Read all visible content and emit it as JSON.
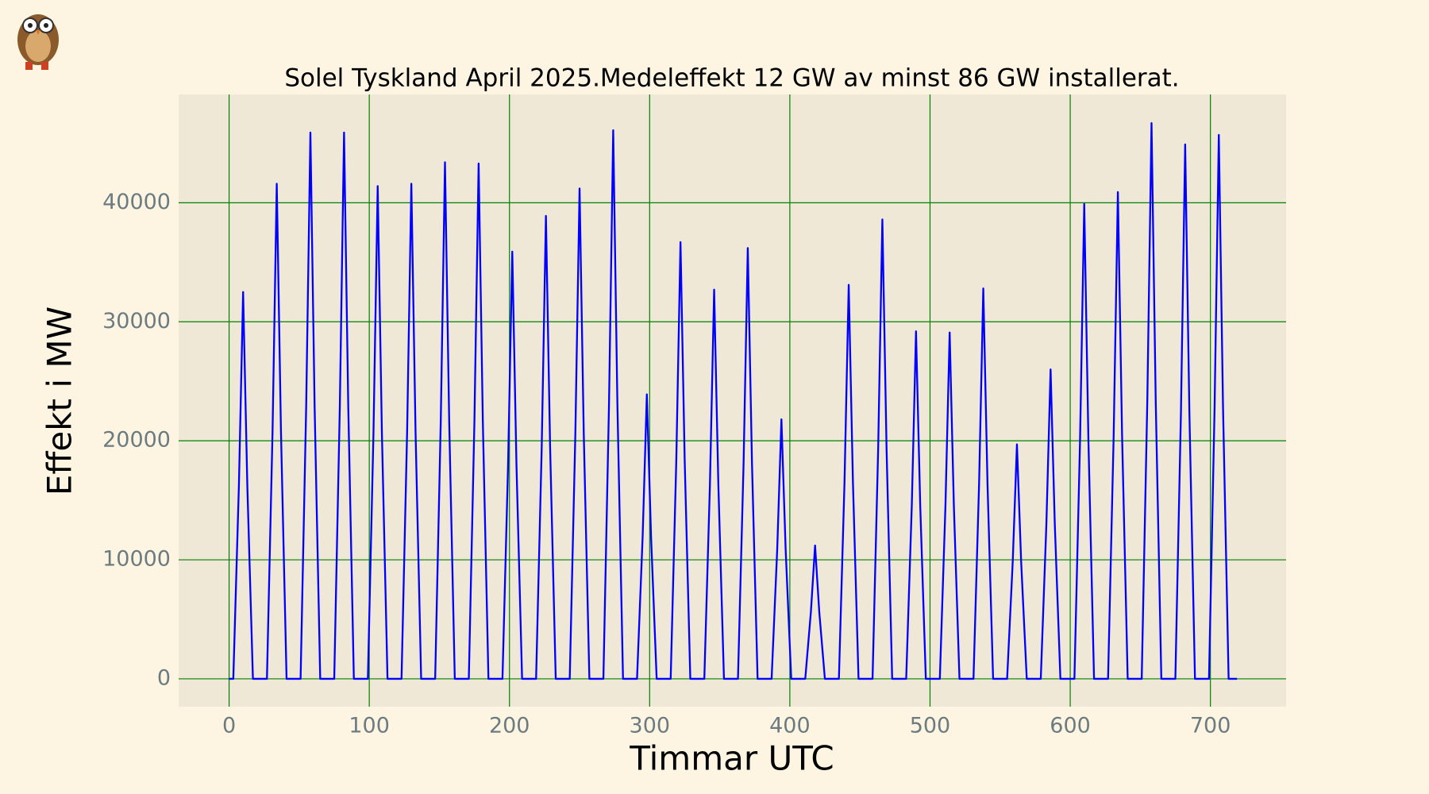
{
  "chart_data": {
    "type": "line",
    "title": "Solel Tyskland April 2025.Medeleffekt 12 GW av minst 86 GW installerat.",
    "xlabel": "Timmar UTC",
    "ylabel": "Effekt i MW",
    "xlim": [
      -36,
      754
    ],
    "ylim": [
      -2340,
      49100
    ],
    "xticks": [
      0,
      100,
      200,
      300,
      400,
      500,
      600,
      700
    ],
    "yticks": [
      0,
      10000,
      20000,
      30000,
      40000
    ],
    "grid": true,
    "grid_color": "#008000",
    "x": [
      0,
      3,
      7,
      10,
      13,
      17,
      27,
      31,
      34,
      37,
      41,
      51,
      55,
      58,
      61,
      65,
      75,
      79,
      82,
      85,
      89,
      99,
      103,
      106,
      109,
      113,
      123,
      127,
      130,
      133,
      137,
      147,
      151,
      154,
      157,
      161,
      171,
      175,
      178,
      181,
      185,
      195,
      199,
      202,
      205,
      209,
      219,
      223,
      226,
      229,
      233,
      243,
      247,
      250,
      253,
      257,
      267,
      271,
      274,
      277,
      281,
      291,
      295,
      298,
      301,
      305,
      315,
      319,
      322,
      325,
      329,
      339,
      343,
      346,
      349,
      353,
      363,
      367,
      370,
      373,
      377,
      387,
      391,
      394,
      397,
      401,
      411,
      415,
      418,
      421,
      425,
      435,
      439,
      442,
      445,
      449,
      459,
      463,
      466,
      469,
      473,
      483,
      487,
      490,
      493,
      497,
      507,
      511,
      514,
      517,
      521,
      531,
      535,
      538,
      541,
      545,
      555,
      559,
      562,
      565,
      569,
      579,
      583,
      586,
      589,
      593,
      603,
      607,
      610,
      613,
      617,
      627,
      631,
      634,
      637,
      641,
      651,
      655,
      658,
      661,
      665,
      675,
      679,
      682,
      685,
      689,
      699,
      703,
      706,
      709,
      713,
      719
    ],
    "series": [
      {
        "name": "Solel",
        "color": "#0000ff",
        "values": [
          0,
          0,
          16250,
          32500,
          16250,
          0,
          0,
          20800,
          41600,
          20800,
          0,
          0,
          22950,
          45900,
          22950,
          0,
          0,
          22950,
          45900,
          22950,
          0,
          0,
          20700,
          41400,
          20700,
          0,
          0,
          20800,
          41600,
          20800,
          0,
          0,
          21700,
          43400,
          21700,
          0,
          0,
          21650,
          43300,
          21650,
          0,
          0,
          17950,
          35900,
          17950,
          0,
          0,
          19450,
          38900,
          19450,
          0,
          0,
          20600,
          41200,
          20600,
          0,
          0,
          23050,
          46100,
          23050,
          0,
          0,
          11950,
          23900,
          11950,
          0,
          0,
          18350,
          36700,
          18350,
          0,
          0,
          16350,
          32700,
          16350,
          0,
          0,
          18100,
          36200,
          18100,
          0,
          0,
          10900,
          21800,
          10900,
          0,
          0,
          5600,
          11200,
          5600,
          0,
          0,
          16550,
          33100,
          16550,
          0,
          0,
          19300,
          38600,
          19300,
          0,
          0,
          14600,
          29200,
          14600,
          0,
          0,
          14550,
          29100,
          14550,
          0,
          0,
          16400,
          32800,
          16400,
          0,
          0,
          9850,
          19700,
          9850,
          0,
          0,
          13000,
          26000,
          13000,
          0,
          0,
          19950,
          39900,
          19950,
          0,
          0,
          20450,
          40900,
          20450,
          0,
          0,
          23350,
          46700,
          23350,
          0,
          0,
          22450,
          44900,
          22450,
          0,
          0,
          22850,
          45700,
          22850,
          0,
          0
        ]
      }
    ]
  }
}
